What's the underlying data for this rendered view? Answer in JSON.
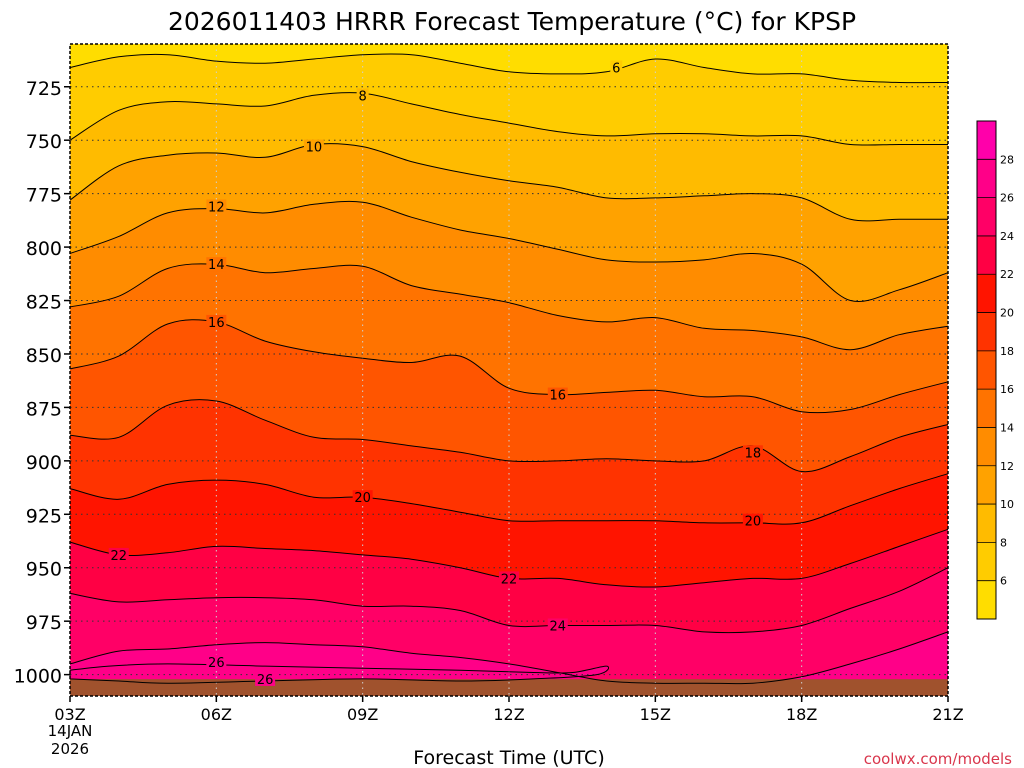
{
  "chart_data": {
    "type": "heatmap",
    "title": "2026011403 HRRR Forecast Temperature (°C) for KPSP",
    "xlabel": "Forecast Time (UTC)",
    "ylabel": "",
    "x_ticks": [
      {
        "hour": 0,
        "label": "03Z"
      },
      {
        "hour": 3,
        "label": "06Z"
      },
      {
        "hour": 6,
        "label": "09Z"
      },
      {
        "hour": 9,
        "label": "12Z"
      },
      {
        "hour": 12,
        "label": "15Z"
      },
      {
        "hour": 15,
        "label": "18Z"
      },
      {
        "hour": 18,
        "label": "21Z"
      }
    ],
    "date_label_lines": [
      "14JAN",
      "2026"
    ],
    "y_ticks": [
      725,
      750,
      775,
      800,
      825,
      850,
      875,
      900,
      925,
      950,
      975,
      1000
    ],
    "xlim": [
      0,
      18
    ],
    "ylim_hPa": [
      1010,
      705
    ],
    "ground_pressure_hPa": 1004,
    "colorbar_ticks": [
      6,
      8,
      10,
      12,
      14,
      16,
      18,
      20,
      22,
      24,
      26,
      28
    ],
    "colorbar_range": [
      4,
      30
    ],
    "levels": [
      {
        "lo": 4,
        "color": "#ffdd00"
      },
      {
        "lo": 6,
        "color": "#ffcc00"
      },
      {
        "lo": 8,
        "color": "#ffbb00"
      },
      {
        "lo": 10,
        "color": "#ffa200"
      },
      {
        "lo": 12,
        "color": "#ff8c00"
      },
      {
        "lo": 14,
        "color": "#ff7300"
      },
      {
        "lo": 16,
        "color": "#ff5500"
      },
      {
        "lo": 18,
        "color": "#ff3300"
      },
      {
        "lo": 20,
        "color": "#ff1400"
      },
      {
        "lo": 22,
        "color": "#ff0044"
      },
      {
        "lo": 24,
        "color": "#ff0066"
      },
      {
        "lo": 26,
        "color": "#ff0088"
      },
      {
        "lo": 28,
        "color": "#ff00aa"
      }
    ],
    "ground_color": "#a0522d",
    "contour_hours": [
      0,
      1,
      2,
      3,
      4,
      5,
      6,
      7,
      8,
      9,
      10,
      11,
      12,
      13,
      14,
      15,
      16,
      17,
      18
    ],
    "contours": [
      {
        "value": 6,
        "pressure": [
          716,
          711,
          710,
          713,
          714,
          712,
          710,
          710,
          714,
          718,
          719,
          718,
          712,
          716,
          719,
          719,
          722,
          723,
          723
        ]
      },
      {
        "value": 8,
        "pressure": [
          750,
          736,
          732,
          733,
          734,
          729,
          728,
          733,
          738,
          742,
          746,
          748,
          747,
          747,
          748,
          748,
          752,
          752,
          752
        ]
      },
      {
        "value": 10,
        "pressure": [
          778,
          762,
          757,
          756,
          758,
          752,
          753,
          760,
          765,
          769,
          772,
          777,
          777,
          776,
          775,
          777,
          787,
          787,
          787
        ]
      },
      {
        "value": 12,
        "pressure": [
          803,
          795,
          784,
          782,
          784,
          780,
          779,
          786,
          792,
          796,
          801,
          806,
          807,
          806,
          803,
          808,
          825,
          820,
          812
        ]
      },
      {
        "value": 14,
        "pressure": [
          828,
          823,
          810,
          808,
          812,
          810,
          809,
          818,
          822,
          826,
          832,
          835,
          833,
          838,
          839,
          842,
          848,
          841,
          837
        ]
      },
      {
        "value": 16,
        "pressure": [
          857,
          851,
          836,
          835,
          844,
          849,
          852,
          854,
          851,
          866,
          869,
          868,
          867,
          870,
          870,
          877,
          876,
          869,
          863
        ]
      },
      {
        "value": 18,
        "pressure": [
          888,
          889,
          874,
          872,
          881,
          889,
          890,
          893,
          896,
          900,
          900,
          899,
          900,
          900,
          893,
          905,
          898,
          889,
          883
        ]
      },
      {
        "value": 20,
        "pressure": [
          913,
          918,
          911,
          909,
          911,
          917,
          917,
          920,
          924,
          928,
          928,
          928,
          928,
          929,
          929,
          929,
          921,
          913,
          906
        ]
      },
      {
        "value": 22,
        "pressure": [
          938,
          944,
          943,
          940,
          941,
          942,
          944,
          946,
          950,
          955,
          955,
          958,
          959,
          957,
          955,
          955,
          948,
          940,
          932
        ]
      },
      {
        "value": 24,
        "pressure": [
          962,
          966,
          965,
          964,
          964,
          965,
          968,
          968,
          970,
          977,
          977,
          977,
          977,
          980,
          980,
          977,
          969,
          961,
          950
        ]
      },
      {
        "value": 26,
        "pressure": [
          995,
          989,
          988,
          986,
          985,
          986,
          987,
          990,
          992,
          995,
          999,
          1003,
          1004,
          1004,
          1004,
          1001,
          995,
          988,
          980
        ]
      }
    ],
    "closed_contour_26": {
      "hours": [
        0,
        0.8,
        2,
        4,
        6,
        8,
        9.5,
        10.3,
        11,
        10.8,
        9.5,
        8,
        6,
        4,
        2,
        1,
        0
      ],
      "pressure": [
        998,
        996,
        995,
        996,
        997,
        998,
        999,
        999,
        996,
        1000,
        1002,
        1003,
        1002,
        1003,
        1004,
        1003,
        1002
      ]
    },
    "contour_labels": [
      {
        "text": "6",
        "hour": 11.2,
        "pressure": 716
      },
      {
        "text": "8",
        "hour": 6.0,
        "pressure": 729
      },
      {
        "text": "10",
        "hour": 5.0,
        "pressure": 753
      },
      {
        "text": "12",
        "hour": 3.0,
        "pressure": 781
      },
      {
        "text": "14",
        "hour": 3.0,
        "pressure": 808
      },
      {
        "text": "16",
        "hour": 3.0,
        "pressure": 835
      },
      {
        "text": "16",
        "hour": 10.0,
        "pressure": 869
      },
      {
        "text": "18",
        "hour": 14.0,
        "pressure": 896
      },
      {
        "text": "20",
        "hour": 6.0,
        "pressure": 917
      },
      {
        "text": "20",
        "hour": 14.0,
        "pressure": 928
      },
      {
        "text": "22",
        "hour": 1.0,
        "pressure": 944
      },
      {
        "text": "22",
        "hour": 9.0,
        "pressure": 955
      },
      {
        "text": "24",
        "hour": 10.0,
        "pressure": 977
      },
      {
        "text": "26",
        "hour": 3.0,
        "pressure": 994
      },
      {
        "text": "26",
        "hour": 4.0,
        "pressure": 1002
      }
    ]
  },
  "watermark": "coolwx.com/models"
}
